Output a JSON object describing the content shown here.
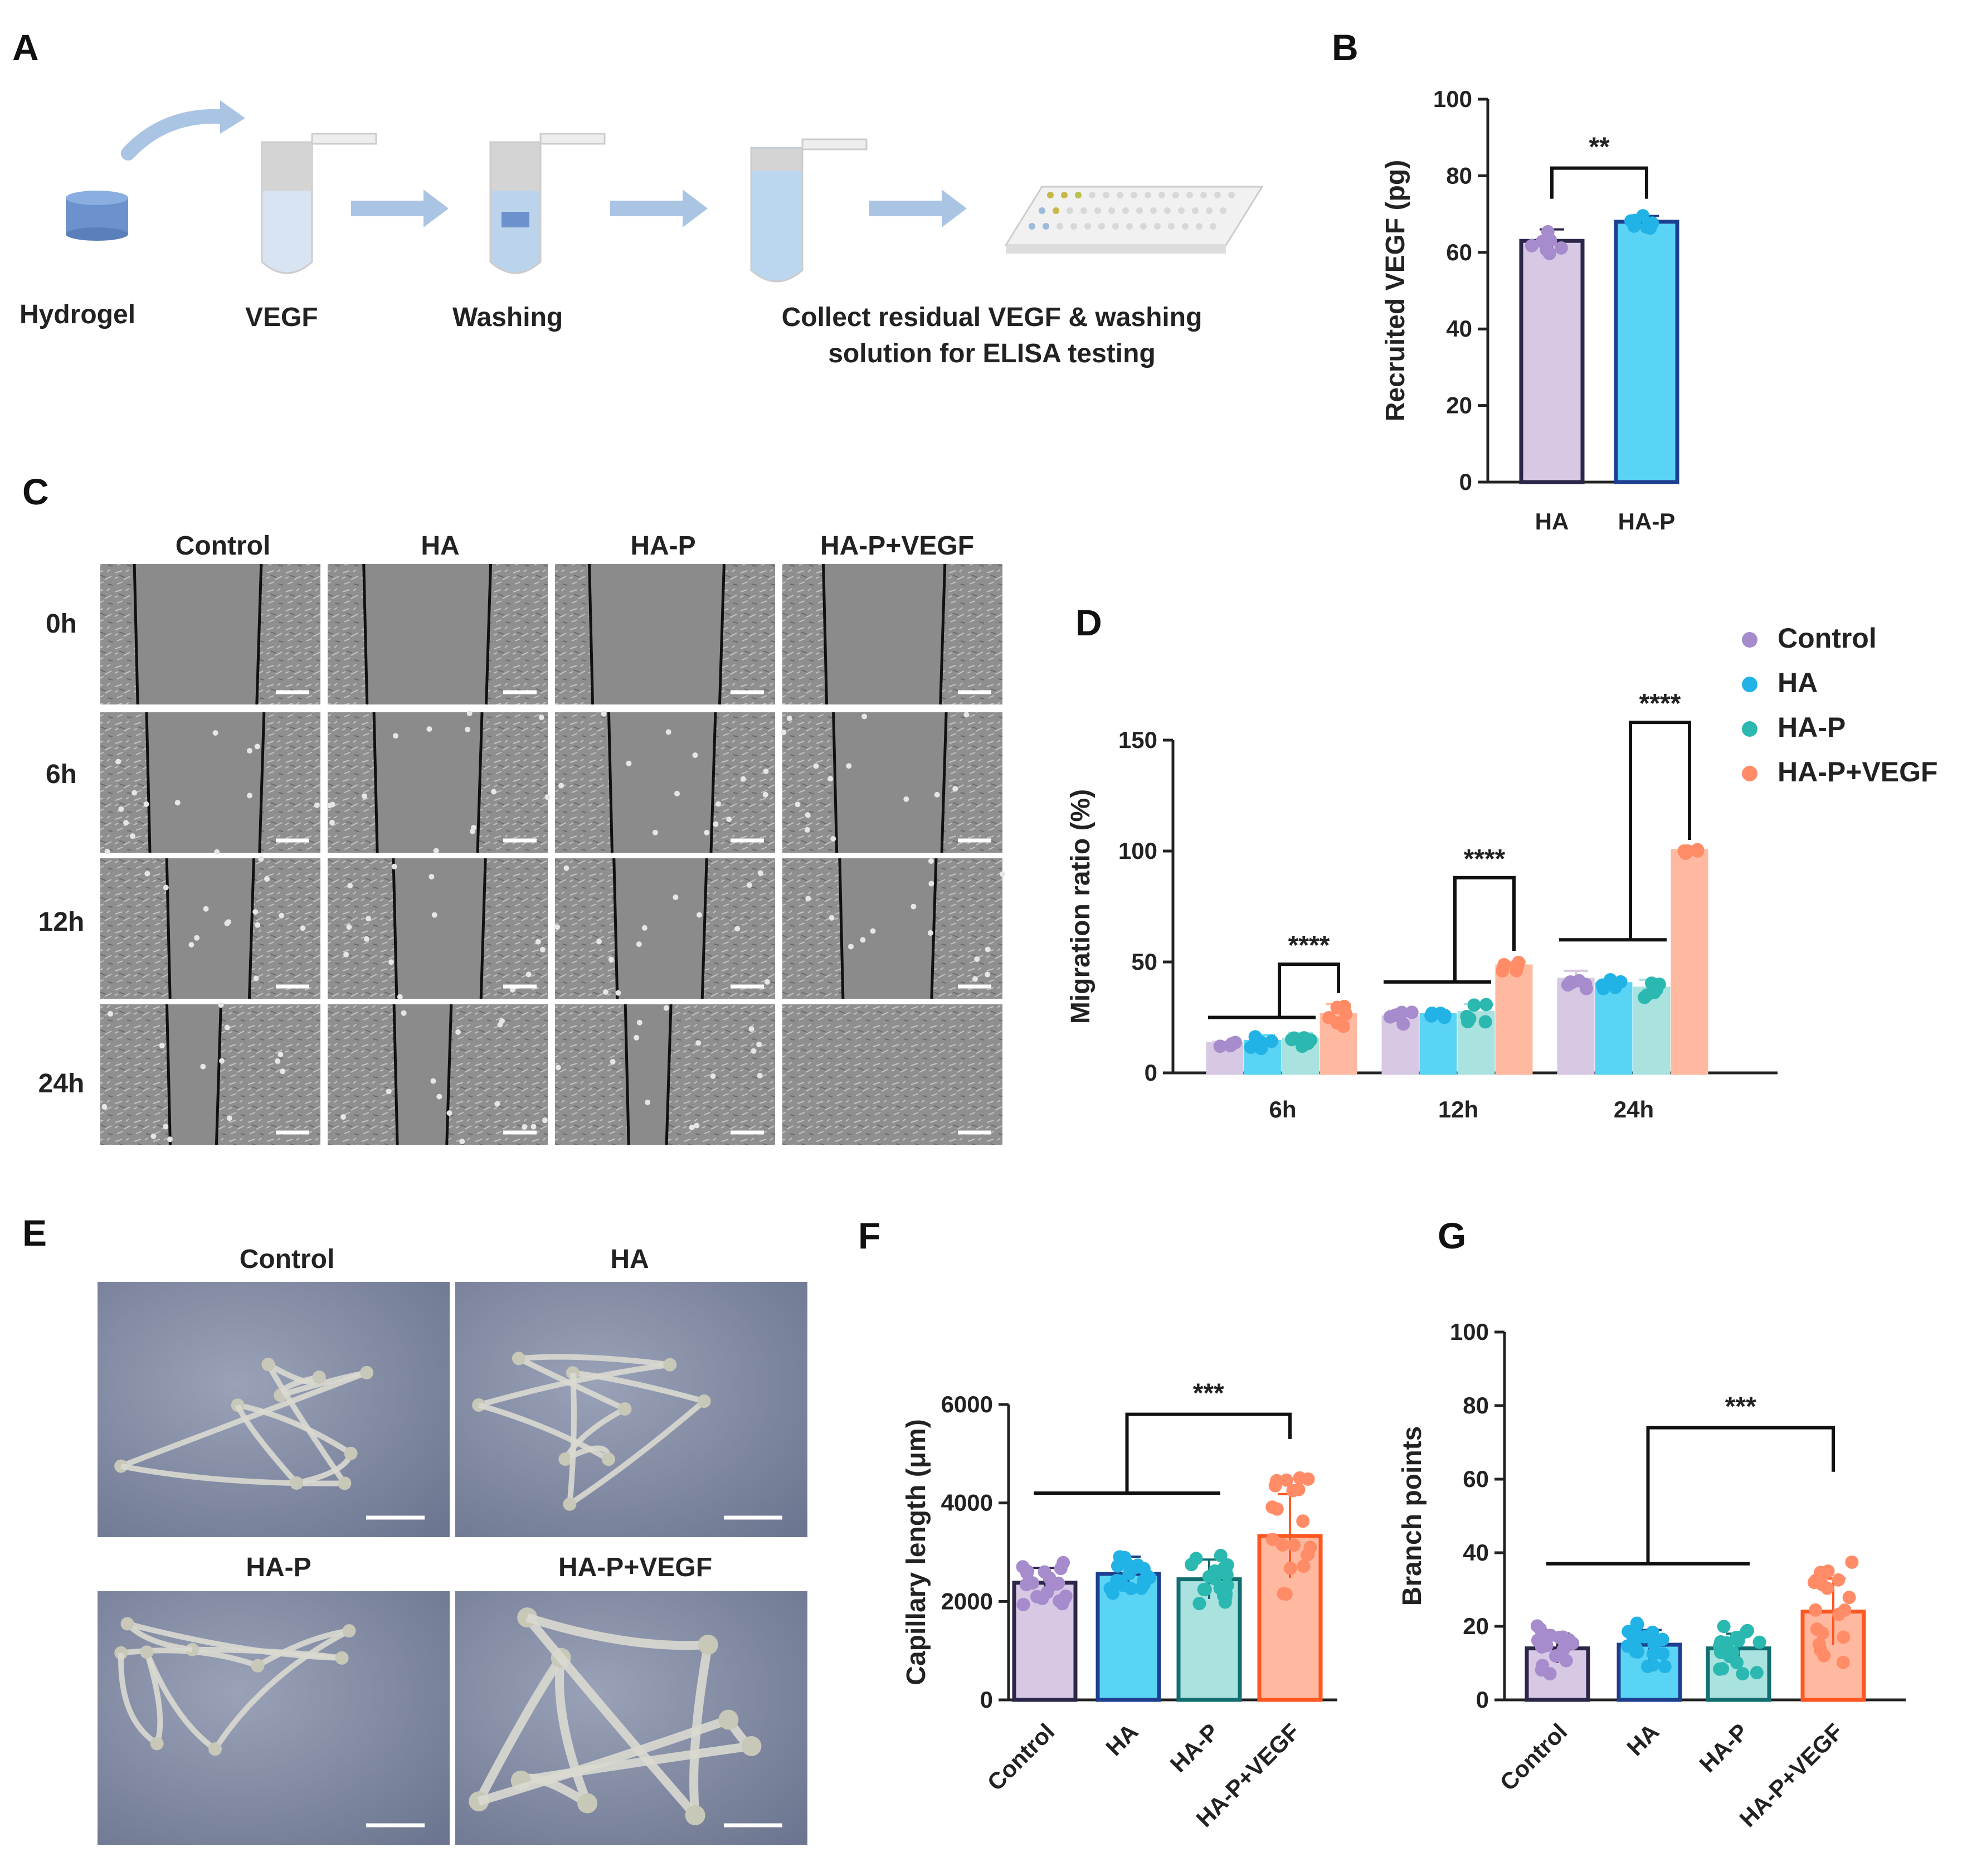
{
  "colors": {
    "control": "#d7c8e4",
    "control_dot": "#a68ccc",
    "control_edge": "#2c2648",
    "ha": "#5ad4f4",
    "ha_dot": "#22b3e6",
    "ha_edge": "#1d3f8f",
    "hap": "#a9e2df",
    "hap_dot": "#2bb8b0",
    "hap_edge": "#126e70",
    "vegf": "#ffb9a0",
    "vegf_dot": "#ff8c66",
    "vegf_edge": "#ff5722",
    "arrow": "#aac4e3"
  },
  "panelA": {
    "label": "A",
    "steps": [
      "Hydrogel",
      "VEGF",
      "Washing"
    ],
    "final_line1": "Collect residual VEGF & washing",
    "final_line2": "solution for ELISA testing"
  },
  "panelC": {
    "label": "C",
    "columns": [
      "Control",
      "HA",
      "HA-P",
      "HA-P+VEGF"
    ],
    "rows": [
      "0h",
      "6h",
      "12h",
      "24h"
    ]
  },
  "panelE": {
    "label": "E",
    "top": [
      "Control",
      "HA"
    ],
    "bottom": [
      "HA-P",
      "HA-P+VEGF"
    ]
  },
  "chart_data": [
    {
      "panel": "B",
      "type": "bar",
      "categories": [
        "HA",
        "HA-P"
      ],
      "values": [
        63,
        68
      ],
      "errors": [
        3,
        1.5
      ],
      "ylabel": "Recruited VEGF (pg)",
      "ylim": [
        0,
        100
      ],
      "yticks": [
        0,
        20,
        40,
        60,
        80,
        100
      ],
      "significance": [
        {
          "text": "**",
          "from": 0,
          "to": 1
        }
      ]
    },
    {
      "panel": "D",
      "type": "bar",
      "categories": [
        "6h",
        "12h",
        "24h"
      ],
      "series": [
        {
          "name": "Control",
          "values": [
            13,
            25,
            42
          ],
          "errors": [
            1,
            3,
            4
          ]
        },
        {
          "name": "HA",
          "values": [
            14,
            26,
            40
          ],
          "errors": [
            3,
            1,
            2
          ]
        },
        {
          "name": "HA-P",
          "values": [
            15,
            27,
            38
          ],
          "errors": [
            3,
            4,
            4
          ]
        },
        {
          "name": "HA-P+VEGF",
          "values": [
            26,
            48,
            100
          ],
          "errors": [
            5,
            2,
            0
          ]
        }
      ],
      "ylabel": "Migration ratio (%)",
      "ylim": [
        0,
        150
      ],
      "yticks": [
        0,
        50,
        100,
        150
      ],
      "legend": "top-right",
      "significance": [
        "****",
        "****",
        "****"
      ]
    },
    {
      "panel": "F",
      "type": "bar",
      "categories": [
        "Control",
        "HA",
        "HA-P",
        "HA-P+VEGF"
      ],
      "values": [
        2380,
        2560,
        2450,
        3330
      ],
      "errors": [
        300,
        350,
        400,
        850
      ],
      "ylabel": "Capillary length (μm)",
      "ylim": [
        0,
        6000
      ],
      "yticks": [
        0,
        2000,
        4000,
        6000
      ],
      "significance": [
        {
          "text": "***"
        }
      ]
    },
    {
      "panel": "G",
      "type": "bar",
      "categories": [
        "Control",
        "HA",
        "HA-P",
        "HA-P+VEGF"
      ],
      "values": [
        14,
        15,
        14,
        24
      ],
      "errors": [
        4,
        4,
        4,
        9
      ],
      "ylabel": "Branch points",
      "ylim": [
        0,
        100
      ],
      "yticks": [
        0,
        20,
        40,
        60,
        80,
        100
      ],
      "significance": [
        {
          "text": "***"
        }
      ]
    }
  ]
}
